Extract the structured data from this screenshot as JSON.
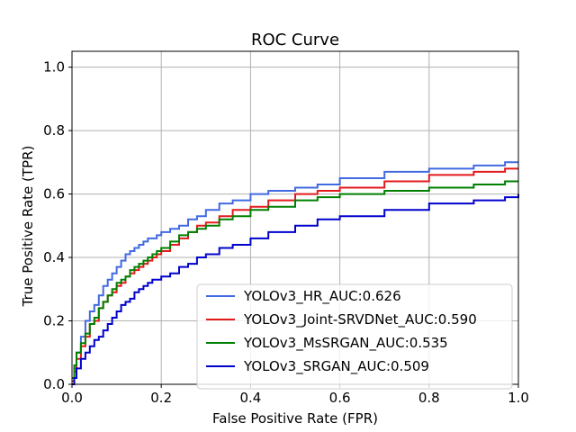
{
  "chart_data": {
    "type": "line",
    "title": "ROC Curve",
    "xlabel": "False Positive Rate (FPR)",
    "ylabel": "True Positive Rate (TPR)",
    "xlim": [
      0.0,
      1.0
    ],
    "ylim": [
      0.0,
      1.05
    ],
    "xticks": [
      0.0,
      0.2,
      0.4,
      0.6,
      0.8,
      1.0
    ],
    "xtick_labels": [
      "0.0",
      "0.2",
      "0.4",
      "0.6",
      "0.8",
      "1.0"
    ],
    "yticks": [
      0.0,
      0.2,
      0.4,
      0.6,
      0.8,
      1.0
    ],
    "ytick_labels": [
      "0.0",
      "0.2",
      "0.4",
      "0.6",
      "0.8",
      "1.0"
    ],
    "grid": true,
    "legend_position": "lower-right",
    "series": [
      {
        "name": "YOLOv3_HR_AUC:0.626",
        "color": "#4169e1",
        "x": [
          0.0,
          0.005,
          0.01,
          0.02,
          0.03,
          0.04,
          0.05,
          0.06,
          0.07,
          0.08,
          0.09,
          0.1,
          0.11,
          0.12,
          0.13,
          0.14,
          0.15,
          0.16,
          0.17,
          0.18,
          0.19,
          0.2,
          0.22,
          0.24,
          0.26,
          0.28,
          0.3,
          0.33,
          0.36,
          0.4,
          0.44,
          0.5,
          0.55,
          0.6,
          0.7,
          0.8,
          0.9,
          0.97,
          1.0
        ],
        "y": [
          0.02,
          0.05,
          0.1,
          0.15,
          0.2,
          0.23,
          0.25,
          0.28,
          0.31,
          0.33,
          0.35,
          0.37,
          0.39,
          0.41,
          0.42,
          0.43,
          0.44,
          0.45,
          0.46,
          0.46,
          0.47,
          0.48,
          0.49,
          0.5,
          0.52,
          0.53,
          0.55,
          0.57,
          0.58,
          0.6,
          0.61,
          0.62,
          0.63,
          0.65,
          0.67,
          0.68,
          0.69,
          0.7,
          0.7
        ]
      },
      {
        "name": "YOLOv3_Joint-SRVDNet_AUC:0.590",
        "color": "#e31a1c",
        "x": [
          0.0,
          0.005,
          0.01,
          0.02,
          0.03,
          0.04,
          0.05,
          0.06,
          0.07,
          0.08,
          0.09,
          0.1,
          0.11,
          0.12,
          0.13,
          0.14,
          0.15,
          0.16,
          0.17,
          0.18,
          0.19,
          0.2,
          0.22,
          0.24,
          0.26,
          0.28,
          0.3,
          0.33,
          0.36,
          0.4,
          0.44,
          0.5,
          0.55,
          0.6,
          0.7,
          0.8,
          0.9,
          0.97,
          1.0
        ],
        "y": [
          0.01,
          0.04,
          0.08,
          0.12,
          0.15,
          0.19,
          0.2,
          0.24,
          0.26,
          0.28,
          0.29,
          0.31,
          0.32,
          0.34,
          0.35,
          0.36,
          0.37,
          0.38,
          0.39,
          0.4,
          0.41,
          0.42,
          0.44,
          0.46,
          0.48,
          0.5,
          0.51,
          0.53,
          0.55,
          0.56,
          0.58,
          0.6,
          0.61,
          0.62,
          0.64,
          0.66,
          0.67,
          0.68,
          0.68
        ]
      },
      {
        "name": "YOLOv3_MsSRGAN_AUC:0.535",
        "color": "#008000",
        "x": [
          0.0,
          0.005,
          0.01,
          0.02,
          0.03,
          0.04,
          0.05,
          0.06,
          0.07,
          0.08,
          0.09,
          0.1,
          0.11,
          0.12,
          0.13,
          0.14,
          0.15,
          0.16,
          0.17,
          0.18,
          0.19,
          0.2,
          0.22,
          0.24,
          0.26,
          0.28,
          0.3,
          0.33,
          0.36,
          0.4,
          0.44,
          0.5,
          0.55,
          0.6,
          0.7,
          0.8,
          0.9,
          0.97,
          1.0
        ],
        "y": [
          0.02,
          0.06,
          0.1,
          0.13,
          0.16,
          0.19,
          0.21,
          0.24,
          0.26,
          0.28,
          0.3,
          0.32,
          0.33,
          0.34,
          0.36,
          0.37,
          0.38,
          0.39,
          0.4,
          0.41,
          0.42,
          0.43,
          0.45,
          0.47,
          0.48,
          0.49,
          0.5,
          0.52,
          0.53,
          0.55,
          0.56,
          0.58,
          0.59,
          0.6,
          0.61,
          0.62,
          0.63,
          0.64,
          0.64
        ]
      },
      {
        "name": "YOLOv3_SRGAN_AUC:0.509",
        "color": "#0000cd",
        "x": [
          0.0,
          0.005,
          0.01,
          0.02,
          0.03,
          0.04,
          0.05,
          0.06,
          0.07,
          0.08,
          0.09,
          0.1,
          0.11,
          0.12,
          0.13,
          0.14,
          0.15,
          0.16,
          0.17,
          0.18,
          0.19,
          0.2,
          0.22,
          0.24,
          0.26,
          0.28,
          0.3,
          0.33,
          0.36,
          0.4,
          0.44,
          0.5,
          0.55,
          0.6,
          0.7,
          0.8,
          0.9,
          0.97,
          1.0
        ],
        "y": [
          0.0,
          0.02,
          0.05,
          0.08,
          0.1,
          0.12,
          0.14,
          0.15,
          0.17,
          0.19,
          0.21,
          0.23,
          0.25,
          0.26,
          0.27,
          0.29,
          0.3,
          0.31,
          0.32,
          0.33,
          0.33,
          0.34,
          0.35,
          0.37,
          0.38,
          0.4,
          0.41,
          0.43,
          0.44,
          0.46,
          0.48,
          0.5,
          0.52,
          0.53,
          0.55,
          0.57,
          0.58,
          0.59,
          0.6
        ]
      }
    ]
  }
}
